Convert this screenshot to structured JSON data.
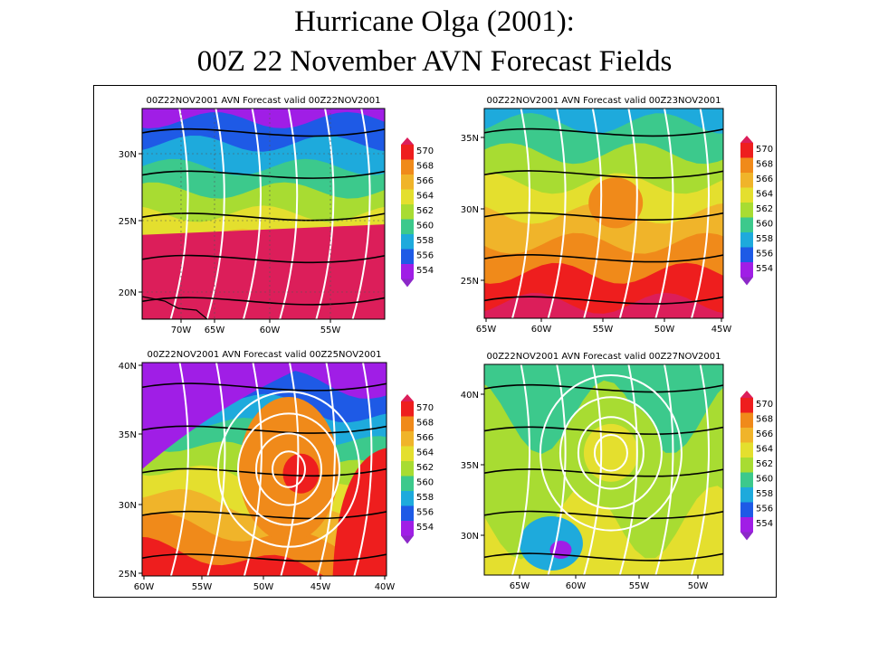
{
  "slide": {
    "title_line1": "Hurricane Olga (2001):",
    "title_line2": "00Z 22 November AVN Forecast Fields"
  },
  "colors": {
    "570": "#ee1e1e",
    "568": "#f08a1a",
    "566": "#f0b42a",
    "564": "#e4df2e",
    "562": "#a8dc32",
    "560": "#3cc98c",
    "558": "#1eaadc",
    "556": "#1e5ae6",
    "554": "#a01ee6",
    "572_plus": "#dc1e5a",
    "below_554": "#8c28c8",
    "height_contour": "#000000",
    "thickness_contour": "#ffffff",
    "land": "#000000"
  },
  "chart_data": [
    {
      "type": "heatmap",
      "title": "00Z22NOV2001 AVN Forecast valid 00Z22NOV2001",
      "x_tick_labels": [
        "70W",
        "65W",
        "60W",
        "55W"
      ],
      "y_tick_labels": [
        "30N",
        "25N",
        "20N"
      ],
      "colorbar_levels": [
        "570",
        "568",
        "566",
        "564",
        "562",
        "560",
        "558",
        "556",
        "554"
      ],
      "bands_north_to_south": [
        "554",
        "556",
        "558",
        "560",
        "562",
        "564",
        "566",
        "568",
        "570",
        "572_plus"
      ],
      "band_lat_span": [
        33,
        18
      ],
      "lon_span": [
        74,
        52
      ],
      "has_land": true,
      "grid": true
    },
    {
      "type": "heatmap",
      "title": "00Z22NOV2001 AVN Forecast valid 00Z23NOV2001",
      "x_tick_labels": [
        "65W",
        "60W",
        "55W",
        "50W",
        "45W"
      ],
      "y_tick_labels": [
        "35N",
        "30N",
        "25N"
      ],
      "colorbar_levels": [
        "570",
        "568",
        "566",
        "564",
        "562",
        "560",
        "558",
        "556",
        "554"
      ],
      "bands_north_to_south": [
        "558",
        "560",
        "562",
        "564",
        "566",
        "568",
        "570",
        "572_plus"
      ],
      "band_lat_span": [
        37,
        22
      ],
      "lon_span": [
        65,
        45
      ],
      "has_land": false,
      "grid": false
    },
    {
      "type": "heatmap",
      "title": "00Z22NOV2001 AVN Forecast valid 00Z25NOV2001",
      "x_tick_labels": [
        "60W",
        "55W",
        "50W",
        "45W",
        "40W"
      ],
      "y_tick_labels": [
        "40N",
        "35N",
        "30N",
        "25N"
      ],
      "colorbar_levels": [
        "570",
        "568",
        "566",
        "564",
        "562",
        "560",
        "558",
        "556",
        "554"
      ],
      "bands_north_to_south": [
        "554",
        "556",
        "558",
        "560",
        "562",
        "564",
        "566",
        "568",
        "570"
      ],
      "band_lat_span": [
        40,
        25
      ],
      "lon_span": [
        60,
        40
      ],
      "has_land": false,
      "grid": false
    },
    {
      "type": "heatmap",
      "title": "00Z22NOV2001 AVN Forecast valid 00Z27NOV2001",
      "x_tick_labels": [
        "65W",
        "60W",
        "55W",
        "50W"
      ],
      "y_tick_labels": [
        "40N",
        "35N",
        "30N"
      ],
      "colorbar_levels": [
        "570",
        "568",
        "566",
        "564",
        "562",
        "560",
        "558",
        "556",
        "554"
      ],
      "bands_north_to_south": [
        "560",
        "562",
        "564"
      ],
      "band_lat_span": [
        42,
        27
      ],
      "lon_span": [
        68,
        47
      ],
      "has_land": false,
      "grid": false
    }
  ]
}
